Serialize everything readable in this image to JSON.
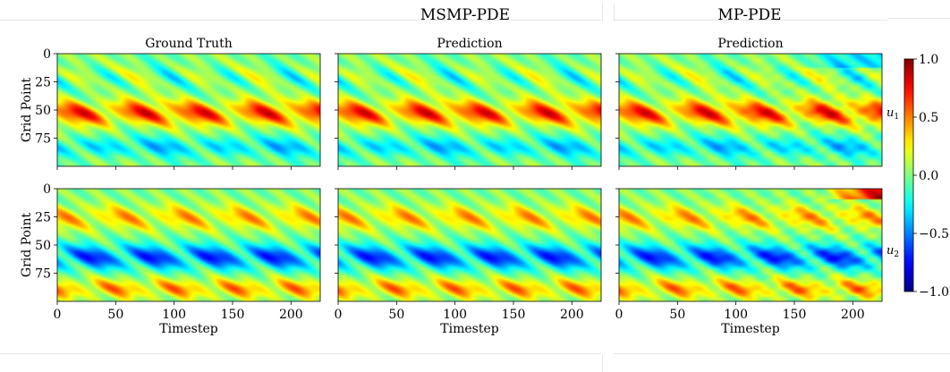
{
  "headers": {
    "msmp": "MSMP-PDE",
    "mp": "MP-PDE"
  },
  "colors": {
    "colormap": "jet",
    "separator": "#e6e6e6"
  },
  "chart_data": {
    "type": "heatmap",
    "panel_titles": [
      "Ground Truth",
      "Prediction",
      "Prediction"
    ],
    "xlabel": "Timestep",
    "ylabel": "Grid Point",
    "x_ticks": [
      "0",
      "50",
      "100",
      "150",
      "200"
    ],
    "y_ticks": [
      "0",
      "25",
      "50",
      "75"
    ],
    "x_range": [
      0,
      225
    ],
    "y_range": [
      0,
      100
    ],
    "y_inverted": true,
    "rows": [
      {
        "variable": "u_1",
        "description_pattern": "periodic diagonal blobs; positive band near grid 50, negative band near grid 80"
      },
      {
        "variable": "u_2",
        "description_pattern": "periodic diagonal blobs; negative band near grid 60, positive bands near grid 25 and 85"
      }
    ],
    "colorbar": {
      "min": -1.0,
      "max": 1.0,
      "ticks": [
        "1.0",
        "0.5",
        "0.0",
        "−0.5",
        "−1.0"
      ],
      "tick_values": [
        1.0,
        0.5,
        0.0,
        -0.5,
        -1.0
      ],
      "row_labels": [
        "u",
        "u"
      ],
      "row_label_subscripts": [
        "1",
        "2"
      ]
    },
    "grid": false
  }
}
